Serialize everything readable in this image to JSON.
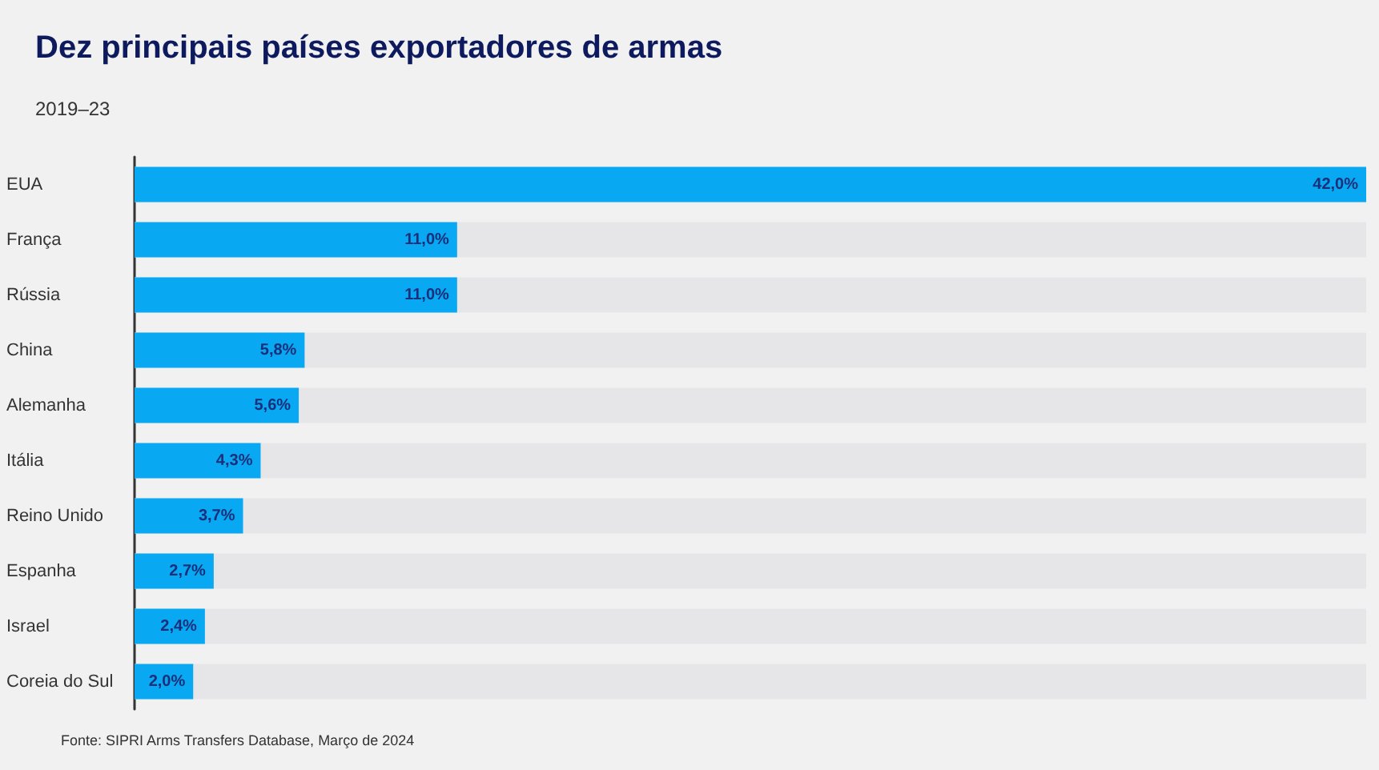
{
  "chart_data": {
    "type": "bar",
    "orientation": "horizontal",
    "title": "Dez principais países exportadores de armas",
    "subtitle": "2019–23",
    "categories": [
      "EUA",
      "França",
      "Rússia",
      "China",
      "Alemanha",
      "Itália",
      "Reino Unido",
      "Espanha",
      "Israel",
      "Coreia do Sul"
    ],
    "values": [
      42.0,
      11.0,
      11.0,
      5.8,
      5.6,
      4.3,
      3.7,
      2.7,
      2.4,
      2.0
    ],
    "value_labels": [
      "42,0%",
      "11,0%",
      "11,0%",
      "5,8%",
      "5,6%",
      "4,3%",
      "3,7%",
      "2,7%",
      "2,4%",
      "2,0%"
    ],
    "color": "#08a9f2",
    "annotations": [
      "Fonte: SIPRI Arms Transfers Database, Março de 2024"
    ]
  }
}
